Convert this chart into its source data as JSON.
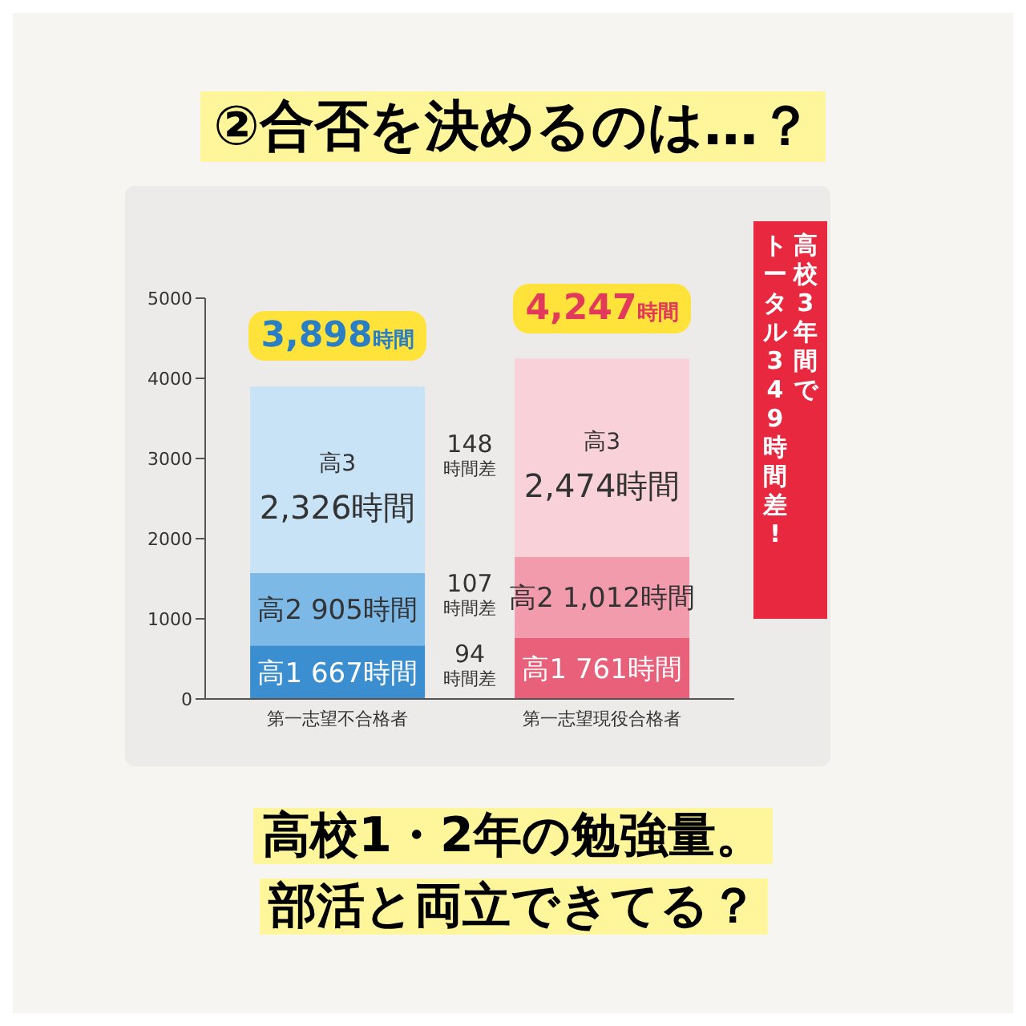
{
  "chart_data": {
    "type": "bar",
    "title": "②合否を決めるのは…？",
    "subtitle": "高校1・2年の勉強量。",
    "categories": [
      "第一志望不合格者",
      "第一志望現役合格者"
    ],
    "stacked": true,
    "series": [
      {
        "name": "高1",
        "colors": [
          "#3b8fd0",
          "#e8607a"
        ],
        "values": [
          667,
          761
        ],
        "value_labels": [
          "667時間",
          "761時間"
        ]
      },
      {
        "name": "高2",
        "colors": [
          "#7db9e7",
          "#f29bac"
        ],
        "values": [
          905,
          1012
        ],
        "value_labels": [
          "905時間",
          "1,012時間"
        ]
      },
      {
        "name": "高3",
        "colors": [
          "#c8e3f6",
          "#f9d1d9"
        ],
        "values": [
          2326,
          2474
        ],
        "value_labels": [
          "2,326時間",
          "2,474時間"
        ]
      }
    ],
    "totals": [
      "3,898時間",
      "4,247時間"
    ],
    "annotations": [
      "94\n時間差",
      "107\n時間差",
      "148\n時間差",
      "高校3年間で",
      "トータル349時間差!",
      "部活と両立できてる？"
    ],
    "ylim": [
      0,
      5000
    ],
    "yticks": [
      0,
      1000,
      2000,
      3000,
      4000,
      5000
    ],
    "grid": false,
    "legend": false
  }
}
